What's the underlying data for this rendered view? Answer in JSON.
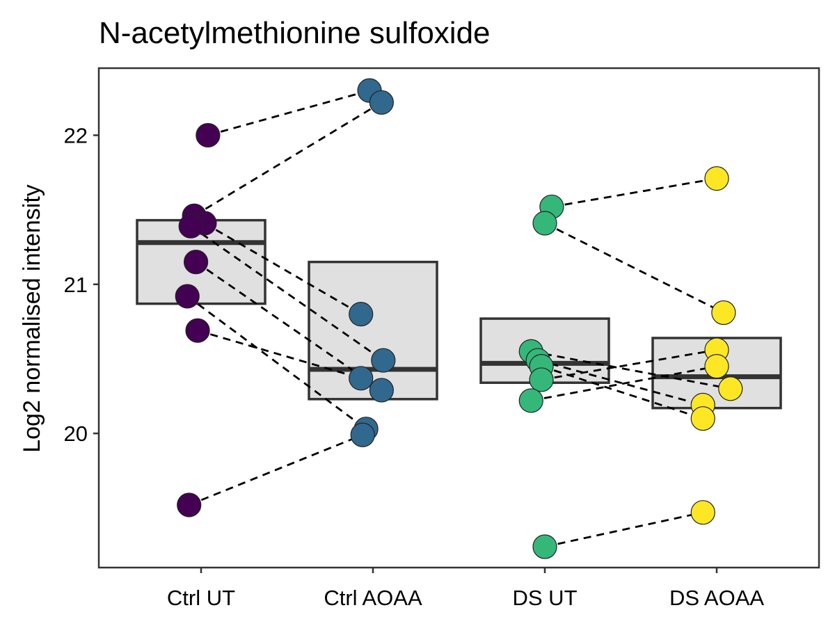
{
  "chart_data": {
    "type": "scatter",
    "title": "N-acetylmethionine sulfoxide",
    "xlabel": "",
    "ylabel": "Log2 normalised intensity",
    "categories": [
      "Ctrl UT",
      "Ctrl AOAA",
      "DS UT",
      "DS AOAA"
    ],
    "yticks": [
      20,
      21,
      22
    ],
    "ylim": [
      19.1,
      22.45
    ],
    "grid": false,
    "legend": "none",
    "colors": {
      "Ctrl UT": "#440154",
      "Ctrl AOAA": "#31688e",
      "DS UT": "#35b779",
      "DS AOAA": "#fde725",
      "box_fill": "#e0e0e0",
      "box_stroke": "#333333"
    },
    "boxes": [
      {
        "category": "Ctrl UT",
        "q1": 20.87,
        "median": 21.28,
        "q3": 21.43
      },
      {
        "category": "Ctrl AOAA",
        "q1": 20.23,
        "median": 20.43,
        "q3": 21.15
      },
      {
        "category": "DS UT",
        "q1": 20.34,
        "median": 20.47,
        "q3": 20.77
      },
      {
        "category": "DS AOAA",
        "q1": 20.17,
        "median": 20.38,
        "q3": 20.64
      }
    ],
    "points": {
      "Ctrl UT": [
        {
          "x": 0.04,
          "y": 22.0
        },
        {
          "x": -0.04,
          "y": 21.46
        },
        {
          "x": 0.02,
          "y": 21.41
        },
        {
          "x": -0.06,
          "y": 21.39
        },
        {
          "x": -0.03,
          "y": 21.15
        },
        {
          "x": -0.08,
          "y": 20.92
        },
        {
          "x": -0.02,
          "y": 20.69
        },
        {
          "x": -0.07,
          "y": 19.52
        }
      ],
      "Ctrl AOAA": [
        {
          "x": -0.02,
          "y": 22.3
        },
        {
          "x": 0.05,
          "y": 22.22
        },
        {
          "x": -0.07,
          "y": 20.8
        },
        {
          "x": 0.06,
          "y": 20.49
        },
        {
          "x": -0.07,
          "y": 20.37
        },
        {
          "x": 0.05,
          "y": 20.29
        },
        {
          "x": -0.04,
          "y": 20.03
        },
        {
          "x": -0.06,
          "y": 19.99
        }
      ],
      "DS UT": [
        {
          "x": 0.04,
          "y": 21.52
        },
        {
          "x": 0.0,
          "y": 21.41
        },
        {
          "x": -0.08,
          "y": 20.55
        },
        {
          "x": -0.04,
          "y": 20.49
        },
        {
          "x": -0.02,
          "y": 20.45
        },
        {
          "x": -0.02,
          "y": 20.36
        },
        {
          "x": -0.08,
          "y": 20.22
        },
        {
          "x": 0.0,
          "y": 19.24
        }
      ],
      "DS AOAA": [
        {
          "x": 0.0,
          "y": 21.71
        },
        {
          "x": 0.04,
          "y": 20.81
        },
        {
          "x": 0.0,
          "y": 20.56
        },
        {
          "x": 0.0,
          "y": 20.45
        },
        {
          "x": 0.08,
          "y": 20.3
        },
        {
          "x": -0.08,
          "y": 20.19
        },
        {
          "x": -0.08,
          "y": 20.1
        },
        {
          "x": -0.08,
          "y": 19.47
        }
      ]
    },
    "pairs": [
      {
        "from": [
          0,
          0
        ],
        "to": [
          1,
          0
        ]
      },
      {
        "from": [
          0,
          1
        ],
        "to": [
          1,
          1
        ]
      },
      {
        "from": [
          0,
          2
        ],
        "to": [
          1,
          2
        ]
      },
      {
        "from": [
          0,
          3
        ],
        "to": [
          1,
          3
        ]
      },
      {
        "from": [
          0,
          4
        ],
        "to": [
          1,
          5
        ]
      },
      {
        "from": [
          0,
          5
        ],
        "to": [
          1,
          6
        ]
      },
      {
        "from": [
          0,
          6
        ],
        "to": [
          1,
          4
        ]
      },
      {
        "from": [
          0,
          7
        ],
        "to": [
          1,
          7
        ]
      },
      {
        "from": [
          2,
          0
        ],
        "to": [
          3,
          0
        ]
      },
      {
        "from": [
          2,
          1
        ],
        "to": [
          3,
          1
        ]
      },
      {
        "from": [
          2,
          2
        ],
        "to": [
          3,
          4
        ]
      },
      {
        "from": [
          2,
          3
        ],
        "to": [
          3,
          5
        ]
      },
      {
        "from": [
          2,
          4
        ],
        "to": [
          3,
          6
        ]
      },
      {
        "from": [
          2,
          5
        ],
        "to": [
          3,
          2
        ]
      },
      {
        "from": [
          2,
          6
        ],
        "to": [
          3,
          3
        ]
      },
      {
        "from": [
          2,
          7
        ],
        "to": [
          3,
          7
        ]
      }
    ]
  }
}
